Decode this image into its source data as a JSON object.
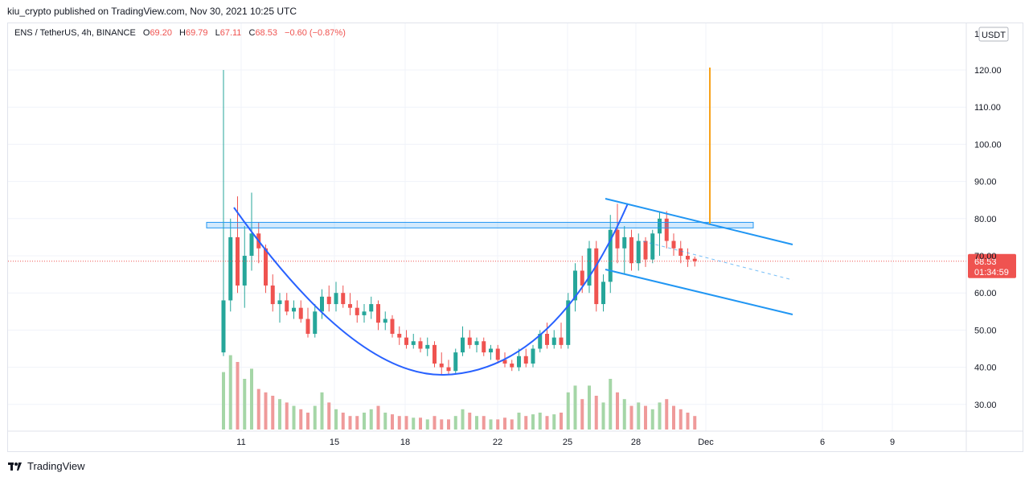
{
  "publisher": {
    "text": "kiu_crypto published on TradingView.com, Nov 30, 2021 10:25 UTC"
  },
  "legend": {
    "symbol": "ENS / TetherUS, 4h, BINANCE",
    "o_label": "O",
    "o_value": "69.20",
    "h_label": "H",
    "h_value": "69.79",
    "l_label": "L",
    "l_value": "67.11",
    "c_label": "C",
    "c_value": "68.53",
    "change": "−0.60 (−0.87%)"
  },
  "price_axis": {
    "currency_badge": "USDT",
    "top_label": "1",
    "current_price": "68.53",
    "countdown": "01:34:59"
  },
  "footer": {
    "brand": "TradingView"
  },
  "colors": {
    "up": "#26a69a",
    "down": "#ef5350",
    "vol_up": "#a5d6a7",
    "vol_down": "#ef9a9a",
    "pattern": "#2962ff",
    "channel": "#2196f3",
    "target": "#f7a21b",
    "price_line": "#ef5350"
  },
  "chart_data": {
    "type": "candlestick",
    "title": "ENS / TetherUS, 4h, BINANCE",
    "x_ticks": [
      "11",
      "15",
      "18",
      "22",
      "25",
      "28",
      "Dec",
      "6",
      "9"
    ],
    "y_ticks": [
      "30.00",
      "40.00",
      "50.00",
      "60.00",
      "70.00",
      "80.00",
      "90.00",
      "100.00",
      "110.00",
      "120.00"
    ],
    "ylim": [
      20,
      130
    ],
    "last_price": 68.53,
    "candles": [
      {
        "o": 44,
        "h": 120,
        "l": 43,
        "c": 58
      },
      {
        "o": 58,
        "h": 80,
        "l": 55,
        "c": 75
      },
      {
        "o": 75,
        "h": 86,
        "l": 60,
        "c": 62
      },
      {
        "o": 62,
        "h": 78,
        "l": 56,
        "c": 70
      },
      {
        "o": 70,
        "h": 87,
        "l": 66,
        "c": 76
      },
      {
        "o": 76,
        "h": 79,
        "l": 68,
        "c": 72
      },
      {
        "o": 72,
        "h": 73,
        "l": 60,
        "c": 62
      },
      {
        "o": 62,
        "h": 65,
        "l": 55,
        "c": 57
      },
      {
        "o": 57,
        "h": 60,
        "l": 52,
        "c": 58
      },
      {
        "o": 58,
        "h": 60,
        "l": 54,
        "c": 55
      },
      {
        "o": 55,
        "h": 58,
        "l": 53,
        "c": 56
      },
      {
        "o": 56,
        "h": 58,
        "l": 52,
        "c": 53
      },
      {
        "o": 53,
        "h": 56,
        "l": 48,
        "c": 49
      },
      {
        "o": 49,
        "h": 57,
        "l": 48,
        "c": 55
      },
      {
        "o": 55,
        "h": 61,
        "l": 53,
        "c": 59
      },
      {
        "o": 59,
        "h": 62,
        "l": 55,
        "c": 57
      },
      {
        "o": 57,
        "h": 63,
        "l": 55,
        "c": 60
      },
      {
        "o": 60,
        "h": 62,
        "l": 56,
        "c": 57
      },
      {
        "o": 57,
        "h": 60,
        "l": 54,
        "c": 56
      },
      {
        "o": 56,
        "h": 58,
        "l": 52,
        "c": 54
      },
      {
        "o": 54,
        "h": 57,
        "l": 52,
        "c": 55
      },
      {
        "o": 55,
        "h": 59,
        "l": 53,
        "c": 57
      },
      {
        "o": 57,
        "h": 58,
        "l": 50,
        "c": 52
      },
      {
        "o": 52,
        "h": 55,
        "l": 50,
        "c": 53
      },
      {
        "o": 53,
        "h": 54,
        "l": 48,
        "c": 49
      },
      {
        "o": 49,
        "h": 51,
        "l": 46,
        "c": 48
      },
      {
        "o": 48,
        "h": 50,
        "l": 45,
        "c": 46
      },
      {
        "o": 46,
        "h": 49,
        "l": 45,
        "c": 47
      },
      {
        "o": 47,
        "h": 48,
        "l": 44,
        "c": 45
      },
      {
        "o": 45,
        "h": 48,
        "l": 43,
        "c": 46
      },
      {
        "o": 46,
        "h": 47,
        "l": 40,
        "c": 41
      },
      {
        "o": 41,
        "h": 44,
        "l": 38,
        "c": 40
      },
      {
        "o": 40,
        "h": 42,
        "l": 38,
        "c": 39
      },
      {
        "o": 39,
        "h": 45,
        "l": 38,
        "c": 44
      },
      {
        "o": 44,
        "h": 51,
        "l": 43,
        "c": 48
      },
      {
        "o": 48,
        "h": 50,
        "l": 45,
        "c": 46
      },
      {
        "o": 46,
        "h": 48,
        "l": 44,
        "c": 47
      },
      {
        "o": 47,
        "h": 48,
        "l": 43,
        "c": 44
      },
      {
        "o": 44,
        "h": 46,
        "l": 42,
        "c": 45
      },
      {
        "o": 45,
        "h": 46,
        "l": 41,
        "c": 42
      },
      {
        "o": 42,
        "h": 44,
        "l": 40,
        "c": 41
      },
      {
        "o": 41,
        "h": 42,
        "l": 39,
        "c": 40
      },
      {
        "o": 40,
        "h": 45,
        "l": 39,
        "c": 43
      },
      {
        "o": 43,
        "h": 45,
        "l": 40,
        "c": 41
      },
      {
        "o": 41,
        "h": 46,
        "l": 40,
        "c": 45
      },
      {
        "o": 45,
        "h": 50,
        "l": 44,
        "c": 49
      },
      {
        "o": 49,
        "h": 52,
        "l": 45,
        "c": 46
      },
      {
        "o": 46,
        "h": 50,
        "l": 45,
        "c": 48
      },
      {
        "o": 48,
        "h": 52,
        "l": 45,
        "c": 46
      },
      {
        "o": 46,
        "h": 60,
        "l": 45,
        "c": 58
      },
      {
        "o": 58,
        "h": 68,
        "l": 55,
        "c": 66
      },
      {
        "o": 66,
        "h": 70,
        "l": 60,
        "c": 62
      },
      {
        "o": 62,
        "h": 74,
        "l": 60,
        "c": 72
      },
      {
        "o": 72,
        "h": 74,
        "l": 55,
        "c": 57
      },
      {
        "o": 57,
        "h": 65,
        "l": 55,
        "c": 63
      },
      {
        "o": 63,
        "h": 81,
        "l": 60,
        "c": 77
      },
      {
        "o": 77,
        "h": 84,
        "l": 68,
        "c": 72
      },
      {
        "o": 72,
        "h": 78,
        "l": 65,
        "c": 75
      },
      {
        "o": 75,
        "h": 77,
        "l": 66,
        "c": 68
      },
      {
        "o": 68,
        "h": 76,
        "l": 66,
        "c": 74
      },
      {
        "o": 74,
        "h": 75,
        "l": 67,
        "c": 69
      },
      {
        "o": 69,
        "h": 77,
        "l": 68,
        "c": 76
      },
      {
        "o": 76,
        "h": 82,
        "l": 70,
        "c": 80
      },
      {
        "o": 80,
        "h": 82,
        "l": 72,
        "c": 74
      },
      {
        "o": 74,
        "h": 76,
        "l": 70,
        "c": 72
      },
      {
        "o": 72,
        "h": 74,
        "l": 68,
        "c": 70
      },
      {
        "o": 70,
        "h": 72,
        "l": 67,
        "c": 69
      },
      {
        "o": 69.2,
        "h": 69.79,
        "l": 67.11,
        "c": 68.53
      }
    ],
    "volume": [
      34,
      44,
      40,
      30,
      36,
      24,
      22,
      20,
      18,
      16,
      14,
      12,
      10,
      14,
      22,
      16,
      12,
      10,
      8,
      8,
      10,
      12,
      14,
      10,
      9,
      8,
      8,
      7,
      7,
      6,
      8,
      6,
      6,
      8,
      12,
      10,
      8,
      8,
      6,
      6,
      7,
      6,
      10,
      8,
      9,
      10,
      8,
      9,
      10,
      22,
      26,
      18,
      26,
      20,
      16,
      30,
      22,
      18,
      14,
      16,
      14,
      12,
      16,
      18,
      14,
      12,
      10,
      8
    ],
    "annotations": {
      "resistance_zone": [
        77.5,
        79
      ],
      "cup_arc": "rounded bottom from ~83 down to ~38 and back to ~84",
      "flag_channel_upper": [
        85,
        73
      ],
      "flag_channel_lower": [
        66,
        55
      ],
      "target_line": [
        79,
        121
      ]
    }
  }
}
